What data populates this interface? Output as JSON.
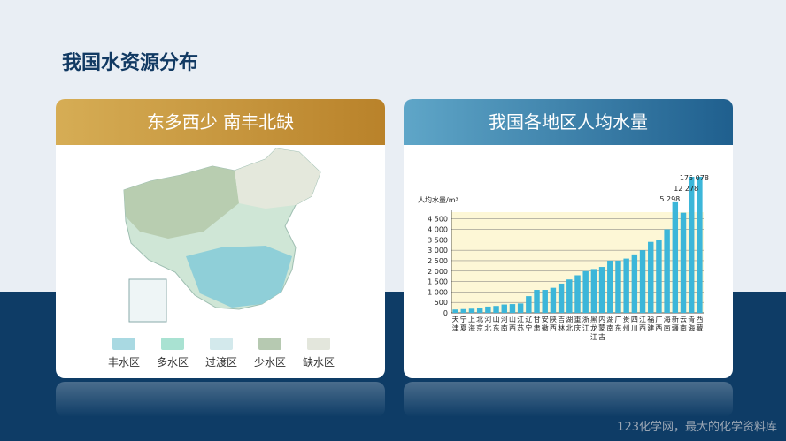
{
  "header": {
    "title": "我国水资源分布"
  },
  "left_card": {
    "title": "东多西少  南丰北缺",
    "legend": [
      "丰水区",
      "多水区",
      "过渡区",
      "少水区",
      "缺水区"
    ]
  },
  "right_card": {
    "title": "我国各地区人均水量"
  },
  "chart_data": {
    "type": "bar",
    "ylabel": "人均水量/m³",
    "categories": [
      "天津",
      "宁夏",
      "上海",
      "北京",
      "河北",
      "山东",
      "河南",
      "山西",
      "江苏",
      "辽宁",
      "甘肃",
      "安徽",
      "陕西",
      "吉林",
      "湖北",
      "重庆",
      "浙江",
      "黑龙江",
      "内蒙古",
      "湖南",
      "广东",
      "贵州",
      "四川",
      "江西",
      "福建",
      "广西",
      "海南",
      "新疆",
      "云南",
      "青海",
      "西藏"
    ],
    "values": [
      160,
      180,
      200,
      220,
      300,
      330,
      400,
      420,
      450,
      800,
      1100,
      1100,
      1200,
      1400,
      1600,
      1800,
      2000,
      2100,
      2200,
      2500,
      2500,
      2600,
      2800,
      3000,
      3400,
      3500,
      4000,
      5298,
      4800,
      12278,
      175078
    ],
    "value_labels": [
      null,
      null,
      null,
      null,
      null,
      null,
      null,
      null,
      null,
      null,
      null,
      null,
      null,
      null,
      null,
      null,
      null,
      null,
      null,
      null,
      null,
      null,
      null,
      null,
      null,
      null,
      null,
      "5 298",
      null,
      "12 278",
      "175 078"
    ],
    "color": "#3cb6d9",
    "ylim": [
      0,
      4700
    ],
    "yticks": [
      0,
      500,
      {
        "value": 1000,
        "label": "1 000"
      },
      {
        "value": 1500,
        "label": "1 500"
      },
      {
        "value": 2000,
        "label": "2 000"
      },
      {
        "value": 2500,
        "label": "2 500"
      },
      {
        "value": 3000,
        "label": "3 000"
      },
      {
        "value": 3500,
        "label": "3 500"
      },
      {
        "value": 4000,
        "label": "4 000"
      },
      {
        "value": 4500,
        "label": "4 500"
      }
    ],
    "grid": true
  },
  "footer": {
    "watermark": "123化学网，最大的化学资料库"
  }
}
